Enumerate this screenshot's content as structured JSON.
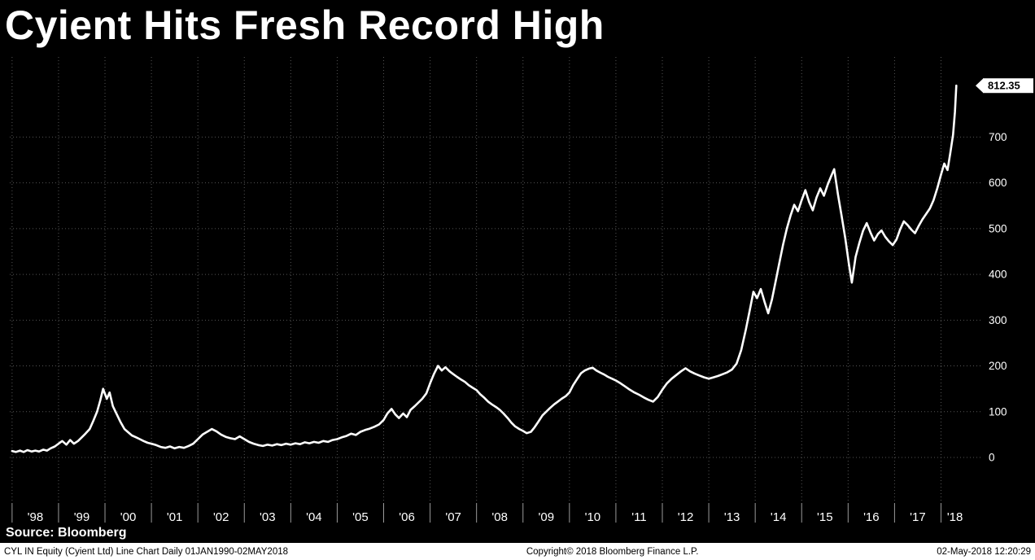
{
  "title": "Cyient Hits Fresh Record High",
  "source_line": "Source: Bloomberg",
  "footer": {
    "left": "CYL IN Equity (Cyient Ltd) Line Chart  Daily 01JAN1990-02MAY2018",
    "center": "Copyright© 2018 Bloomberg Finance L.P.",
    "right": "02-May-2018 12:20:29"
  },
  "colors": {
    "background": "#000000",
    "line": "#ffffff",
    "grid": "#555555",
    "tick": "#9a9a9a",
    "text": "#ffffff",
    "footer_bg": "#ffffff",
    "footer_text": "#000000",
    "price_label_bg": "#ffffff",
    "price_label_text": "#000000"
  },
  "chart_data": {
    "type": "line",
    "title": "Cyient Hits Fresh Record High",
    "xlabel": "",
    "ylabel": "",
    "xlim": [
      1997.95,
      2018.85
    ],
    "ylim": [
      0,
      875
    ],
    "grid": "dotted",
    "legend": "none",
    "last_price": 812.35,
    "last_price_label": "812.35",
    "y_ticks": [
      0,
      100,
      200,
      300,
      400,
      500,
      600,
      700
    ],
    "x_ticks": [
      {
        "label": "'98",
        "year": 1998.5
      },
      {
        "label": "'99",
        "year": 1999.5
      },
      {
        "label": "'00",
        "year": 2000.5
      },
      {
        "label": "'01",
        "year": 2001.5
      },
      {
        "label": "'02",
        "year": 2002.5
      },
      {
        "label": "'03",
        "year": 2003.5
      },
      {
        "label": "'04",
        "year": 2004.5
      },
      {
        "label": "'05",
        "year": 2005.5
      },
      {
        "label": "'06",
        "year": 2006.5
      },
      {
        "label": "'07",
        "year": 2007.5
      },
      {
        "label": "'08",
        "year": 2008.5
      },
      {
        "label": "'09",
        "year": 2009.5
      },
      {
        "label": "'10",
        "year": 2010.5
      },
      {
        "label": "'11",
        "year": 2011.5
      },
      {
        "label": "'12",
        "year": 2012.5
      },
      {
        "label": "'13",
        "year": 2013.5
      },
      {
        "label": "'14",
        "year": 2014.5
      },
      {
        "label": "'15",
        "year": 2015.5
      },
      {
        "label": "'16",
        "year": 2016.5
      },
      {
        "label": "'17",
        "year": 2017.5
      },
      {
        "label": "'18",
        "year": 2018.3
      }
    ],
    "series": [
      {
        "name": "CYL IN Equity last price",
        "points": [
          [
            1998.0,
            14
          ],
          [
            1998.08,
            12
          ],
          [
            1998.17,
            15
          ],
          [
            1998.25,
            12
          ],
          [
            1998.33,
            16
          ],
          [
            1998.42,
            13
          ],
          [
            1998.5,
            15
          ],
          [
            1998.58,
            13
          ],
          [
            1998.67,
            17
          ],
          [
            1998.75,
            15
          ],
          [
            1998.83,
            20
          ],
          [
            1998.92,
            24
          ],
          [
            1999.0,
            30
          ],
          [
            1999.08,
            36
          ],
          [
            1999.17,
            28
          ],
          [
            1999.25,
            38
          ],
          [
            1999.33,
            30
          ],
          [
            1999.42,
            36
          ],
          [
            1999.5,
            44
          ],
          [
            1999.58,
            52
          ],
          [
            1999.67,
            62
          ],
          [
            1999.75,
            80
          ],
          [
            1999.83,
            100
          ],
          [
            1999.9,
            125
          ],
          [
            1999.96,
            150
          ],
          [
            2000.04,
            128
          ],
          [
            2000.1,
            142
          ],
          [
            2000.17,
            112
          ],
          [
            2000.25,
            95
          ],
          [
            2000.33,
            78
          ],
          [
            2000.42,
            62
          ],
          [
            2000.5,
            55
          ],
          [
            2000.58,
            48
          ],
          [
            2000.67,
            44
          ],
          [
            2000.75,
            40
          ],
          [
            2000.83,
            36
          ],
          [
            2000.92,
            32
          ],
          [
            2001.0,
            30
          ],
          [
            2001.1,
            27
          ],
          [
            2001.2,
            23
          ],
          [
            2001.3,
            21
          ],
          [
            2001.4,
            24
          ],
          [
            2001.5,
            20
          ],
          [
            2001.6,
            23
          ],
          [
            2001.7,
            21
          ],
          [
            2001.8,
            25
          ],
          [
            2001.9,
            30
          ],
          [
            2002.0,
            40
          ],
          [
            2002.1,
            50
          ],
          [
            2002.2,
            56
          ],
          [
            2002.3,
            62
          ],
          [
            2002.4,
            57
          ],
          [
            2002.5,
            50
          ],
          [
            2002.6,
            45
          ],
          [
            2002.7,
            42
          ],
          [
            2002.8,
            40
          ],
          [
            2002.9,
            46
          ],
          [
            2003.0,
            40
          ],
          [
            2003.1,
            34
          ],
          [
            2003.2,
            30
          ],
          [
            2003.3,
            27
          ],
          [
            2003.4,
            25
          ],
          [
            2003.5,
            28
          ],
          [
            2003.6,
            26
          ],
          [
            2003.7,
            29
          ],
          [
            2003.8,
            27
          ],
          [
            2003.9,
            30
          ],
          [
            2004.0,
            28
          ],
          [
            2004.1,
            31
          ],
          [
            2004.2,
            29
          ],
          [
            2004.3,
            33
          ],
          [
            2004.4,
            31
          ],
          [
            2004.5,
            34
          ],
          [
            2004.6,
            32
          ],
          [
            2004.7,
            36
          ],
          [
            2004.8,
            34
          ],
          [
            2004.9,
            38
          ],
          [
            2005.0,
            40
          ],
          [
            2005.1,
            44
          ],
          [
            2005.2,
            47
          ],
          [
            2005.3,
            52
          ],
          [
            2005.4,
            49
          ],
          [
            2005.5,
            56
          ],
          [
            2005.6,
            60
          ],
          [
            2005.7,
            63
          ],
          [
            2005.8,
            67
          ],
          [
            2005.9,
            72
          ],
          [
            2006.0,
            82
          ],
          [
            2006.08,
            96
          ],
          [
            2006.17,
            106
          ],
          [
            2006.25,
            94
          ],
          [
            2006.33,
            86
          ],
          [
            2006.42,
            96
          ],
          [
            2006.5,
            88
          ],
          [
            2006.58,
            104
          ],
          [
            2006.67,
            112
          ],
          [
            2006.75,
            120
          ],
          [
            2006.83,
            128
          ],
          [
            2006.92,
            140
          ],
          [
            2007.0,
            162
          ],
          [
            2007.08,
            182
          ],
          [
            2007.17,
            200
          ],
          [
            2007.25,
            190
          ],
          [
            2007.33,
            197
          ],
          [
            2007.42,
            188
          ],
          [
            2007.5,
            182
          ],
          [
            2007.58,
            176
          ],
          [
            2007.67,
            170
          ],
          [
            2007.75,
            165
          ],
          [
            2007.83,
            158
          ],
          [
            2007.92,
            152
          ],
          [
            2008.0,
            147
          ],
          [
            2008.08,
            138
          ],
          [
            2008.17,
            130
          ],
          [
            2008.25,
            122
          ],
          [
            2008.33,
            116
          ],
          [
            2008.42,
            110
          ],
          [
            2008.5,
            104
          ],
          [
            2008.58,
            96
          ],
          [
            2008.67,
            86
          ],
          [
            2008.75,
            76
          ],
          [
            2008.83,
            68
          ],
          [
            2008.92,
            62
          ],
          [
            2009.0,
            58
          ],
          [
            2009.08,
            53
          ],
          [
            2009.17,
            56
          ],
          [
            2009.25,
            66
          ],
          [
            2009.33,
            78
          ],
          [
            2009.42,
            92
          ],
          [
            2009.5,
            100
          ],
          [
            2009.58,
            108
          ],
          [
            2009.67,
            116
          ],
          [
            2009.75,
            122
          ],
          [
            2009.83,
            128
          ],
          [
            2009.92,
            134
          ],
          [
            2010.0,
            142
          ],
          [
            2010.08,
            158
          ],
          [
            2010.17,
            172
          ],
          [
            2010.25,
            184
          ],
          [
            2010.33,
            190
          ],
          [
            2010.42,
            194
          ],
          [
            2010.5,
            196
          ],
          [
            2010.58,
            190
          ],
          [
            2010.67,
            185
          ],
          [
            2010.75,
            181
          ],
          [
            2010.83,
            176
          ],
          [
            2010.92,
            172
          ],
          [
            2011.0,
            168
          ],
          [
            2011.1,
            162
          ],
          [
            2011.2,
            155
          ],
          [
            2011.3,
            148
          ],
          [
            2011.4,
            142
          ],
          [
            2011.5,
            137
          ],
          [
            2011.6,
            131
          ],
          [
            2011.7,
            126
          ],
          [
            2011.8,
            122
          ],
          [
            2011.9,
            132
          ],
          [
            2012.0,
            148
          ],
          [
            2012.1,
            162
          ],
          [
            2012.2,
            172
          ],
          [
            2012.3,
            180
          ],
          [
            2012.4,
            188
          ],
          [
            2012.5,
            195
          ],
          [
            2012.6,
            188
          ],
          [
            2012.7,
            183
          ],
          [
            2012.8,
            179
          ],
          [
            2012.9,
            175
          ],
          [
            2013.0,
            172
          ],
          [
            2013.1,
            175
          ],
          [
            2013.2,
            178
          ],
          [
            2013.3,
            182
          ],
          [
            2013.4,
            186
          ],
          [
            2013.5,
            192
          ],
          [
            2013.6,
            205
          ],
          [
            2013.7,
            235
          ],
          [
            2013.8,
            280
          ],
          [
            2013.9,
            330
          ],
          [
            2013.96,
            362
          ],
          [
            2014.04,
            348
          ],
          [
            2014.12,
            368
          ],
          [
            2014.2,
            340
          ],
          [
            2014.28,
            315
          ],
          [
            2014.36,
            345
          ],
          [
            2014.44,
            385
          ],
          [
            2014.52,
            425
          ],
          [
            2014.6,
            465
          ],
          [
            2014.68,
            500
          ],
          [
            2014.76,
            528
          ],
          [
            2014.84,
            552
          ],
          [
            2014.92,
            538
          ],
          [
            2015.0,
            562
          ],
          [
            2015.08,
            584
          ],
          [
            2015.16,
            558
          ],
          [
            2015.24,
            540
          ],
          [
            2015.32,
            568
          ],
          [
            2015.4,
            588
          ],
          [
            2015.48,
            572
          ],
          [
            2015.56,
            596
          ],
          [
            2015.64,
            616
          ],
          [
            2015.7,
            630
          ],
          [
            2015.78,
            575
          ],
          [
            2015.86,
            528
          ],
          [
            2015.94,
            478
          ],
          [
            2016.02,
            420
          ],
          [
            2016.08,
            382
          ],
          [
            2016.16,
            438
          ],
          [
            2016.24,
            468
          ],
          [
            2016.32,
            495
          ],
          [
            2016.4,
            512
          ],
          [
            2016.48,
            492
          ],
          [
            2016.56,
            474
          ],
          [
            2016.64,
            488
          ],
          [
            2016.72,
            496
          ],
          [
            2016.8,
            482
          ],
          [
            2016.88,
            472
          ],
          [
            2016.96,
            464
          ],
          [
            2017.04,
            476
          ],
          [
            2017.12,
            498
          ],
          [
            2017.2,
            516
          ],
          [
            2017.28,
            508
          ],
          [
            2017.36,
            498
          ],
          [
            2017.44,
            490
          ],
          [
            2017.52,
            506
          ],
          [
            2017.6,
            520
          ],
          [
            2017.68,
            532
          ],
          [
            2017.76,
            544
          ],
          [
            2017.84,
            562
          ],
          [
            2017.92,
            588
          ],
          [
            2018.0,
            618
          ],
          [
            2018.07,
            642
          ],
          [
            2018.14,
            628
          ],
          [
            2018.2,
            665
          ],
          [
            2018.26,
            705
          ],
          [
            2018.3,
            755
          ],
          [
            2018.33,
            812.35
          ]
        ]
      }
    ]
  }
}
